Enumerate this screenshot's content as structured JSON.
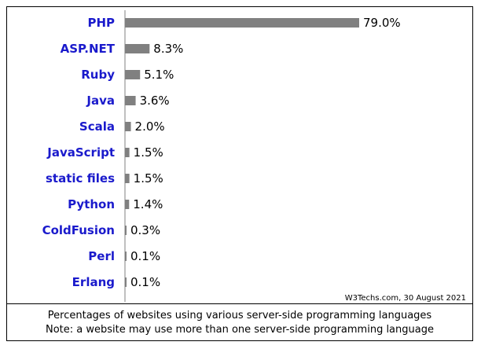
{
  "chart_data": {
    "type": "bar",
    "orientation": "horizontal",
    "categories": [
      "PHP",
      "ASP.NET",
      "Ruby",
      "Java",
      "Scala",
      "JavaScript",
      "static files",
      "Python",
      "ColdFusion",
      "Perl",
      "Erlang"
    ],
    "values": [
      79.0,
      8.3,
      5.1,
      3.6,
      2.0,
      1.5,
      1.5,
      1.4,
      0.3,
      0.1,
      0.1
    ],
    "value_labels": [
      "79.0%",
      "8.3%",
      "5.1%",
      "3.6%",
      "2.0%",
      "1.5%",
      "1.5%",
      "1.4%",
      "0.3%",
      "0.1%",
      "0.1%"
    ],
    "xlim": [
      0,
      79.0
    ],
    "grid": false,
    "legend": "none",
    "bar_color": "#808080",
    "label_color": "#1a1acc"
  },
  "source": "W3Techs.com, 30 August 2021",
  "caption": {
    "line1": "Percentages of websites using various server-side programming languages",
    "line2": "Note: a website may use more than one server-side programming language"
  }
}
